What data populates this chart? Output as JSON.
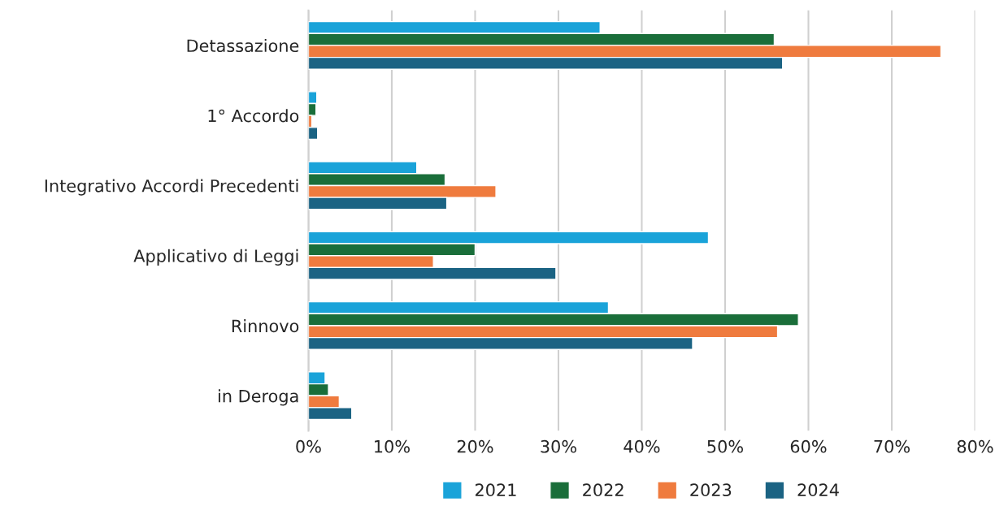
{
  "chart_data": {
    "type": "bar",
    "orientation": "horizontal",
    "categories": [
      "Detassazione",
      "1° Accordo",
      "Integrativo Accordi Precedenti",
      "Applicativo di Leggi",
      "Rinnovo",
      "in Deroga"
    ],
    "series": [
      {
        "name": "2021",
        "color": "#1aa3d9",
        "values": [
          35.0,
          1.0,
          13.0,
          48.0,
          36.0,
          2.0
        ]
      },
      {
        "name": "2022",
        "color": "#1a6e3a",
        "values": [
          55.9,
          0.9,
          16.4,
          20.0,
          58.8,
          2.4
        ]
      },
      {
        "name": "2023",
        "color": "#ef7b3e",
        "values": [
          75.9,
          0.4,
          22.5,
          15.0,
          56.3,
          3.7
        ]
      },
      {
        "name": "2024",
        "color": "#1b6383",
        "values": [
          56.9,
          1.1,
          16.6,
          29.7,
          46.1,
          5.2
        ]
      }
    ],
    "xlim": [
      0,
      80
    ],
    "xticks": [
      {
        "value": 0,
        "label": "0%"
      },
      {
        "value": 10,
        "label": "10%"
      },
      {
        "value": 20,
        "label": "20%"
      },
      {
        "value": 30,
        "label": "30%"
      },
      {
        "value": 40,
        "label": "40%"
      },
      {
        "value": 50,
        "label": "50%"
      },
      {
        "value": 60,
        "label": "60%"
      },
      {
        "value": 70,
        "label": "70%"
      },
      {
        "value": 80,
        "label": "80%"
      }
    ],
    "grid": "x",
    "legend": "bottom"
  }
}
